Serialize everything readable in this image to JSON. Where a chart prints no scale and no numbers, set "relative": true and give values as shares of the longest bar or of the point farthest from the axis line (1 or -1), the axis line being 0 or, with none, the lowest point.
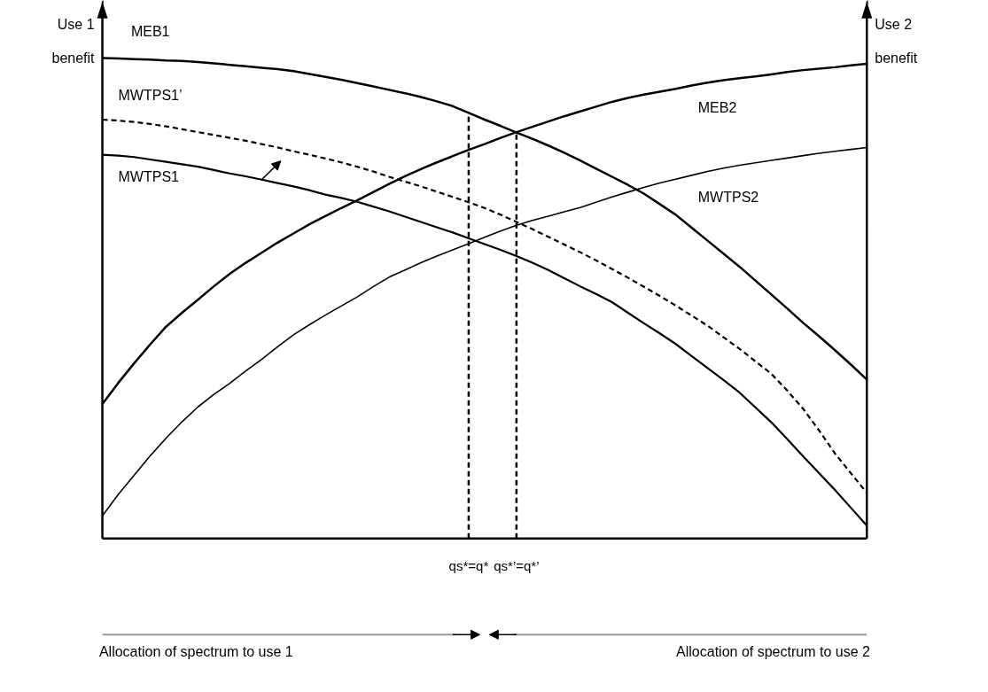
{
  "chart_data": {
    "type": "line",
    "relative": true,
    "legend": false,
    "tick_labels": "x",
    "grid": false,
    "ylabel": "Use 1 benefit",
    "y2label": "Use 2 benefit",
    "categories": [
      null,
      null,
      null,
      null,
      null,
      null,
      null,
      null,
      null,
      null,
      null,
      null,
      null,
      null,
      null,
      null,
      null,
      null,
      null,
      null,
      null,
      null,
      null,
      "qs*=q*",
      null,
      null,
      "qs*’=q*’",
      null,
      null,
      null,
      null,
      null,
      null,
      null,
      null,
      null,
      null,
      null,
      null,
      null,
      null,
      null,
      null,
      null,
      null,
      null,
      null,
      null,
      null
    ],
    "series": [
      {
        "name": "MEB1",
        "color": "#000000",
        "line_style": "solid",
        "values": [
          1.0,
          0.999,
          0.998,
          0.997,
          0.995,
          0.994,
          0.992,
          0.989,
          0.986,
          0.983,
          0.98,
          0.977,
          0.973,
          0.967,
          0.961,
          0.955,
          0.948,
          0.941,
          0.934,
          0.927,
          0.919,
          0.91,
          0.9,
          0.886,
          0.872,
          0.859,
          0.845,
          0.832,
          0.818,
          0.803,
          0.787,
          0.77,
          0.753,
          0.736,
          0.718,
          0.696,
          0.674,
          0.647,
          0.62,
          0.593,
          0.566,
          0.537,
          0.508,
          0.479,
          0.449,
          0.421,
          0.392,
          0.362,
          0.331
        ]
      },
      {
        "name": "MWTPS1’",
        "color": "#000000",
        "line_style": "dashed",
        "values": [
          0.872,
          0.87,
          0.867,
          0.863,
          0.858,
          0.852,
          0.846,
          0.84,
          0.834,
          0.828,
          0.821,
          0.814,
          0.806,
          0.799,
          0.791,
          0.783,
          0.774,
          0.764,
          0.753,
          0.743,
          0.733,
          0.722,
          0.711,
          0.7,
          0.688,
          0.674,
          0.659,
          0.644,
          0.628,
          0.612,
          0.596,
          0.579,
          0.561,
          0.543,
          0.524,
          0.505,
          0.485,
          0.464,
          0.443,
          0.419,
          0.395,
          0.369,
          0.343,
          0.308,
          0.27,
          0.225,
          0.177,
          0.136,
          0.095
        ]
      },
      {
        "name": "MWTPS1",
        "color": "#000000",
        "line_style": "solid",
        "values": [
          0.799,
          0.797,
          0.794,
          0.789,
          0.784,
          0.779,
          0.774,
          0.767,
          0.76,
          0.754,
          0.747,
          0.74,
          0.733,
          0.725,
          0.716,
          0.709,
          0.701,
          0.691,
          0.681,
          0.67,
          0.659,
          0.648,
          0.637,
          0.625,
          0.613,
          0.601,
          0.588,
          0.574,
          0.559,
          0.542,
          0.525,
          0.509,
          0.492,
          0.47,
          0.448,
          0.427,
          0.405,
          0.38,
          0.355,
          0.33,
          0.304,
          0.273,
          0.242,
          0.207,
          0.171,
          0.136,
          0.101,
          0.064,
          0.027
        ]
      },
      {
        "name": "MEB2",
        "color": "#000000",
        "line_style": "solid",
        "values": [
          0.28,
          0.324,
          0.365,
          0.404,
          0.441,
          0.47,
          0.497,
          0.525,
          0.551,
          0.574,
          0.595,
          0.616,
          0.635,
          0.654,
          0.671,
          0.688,
          0.704,
          0.721,
          0.738,
          0.754,
          0.769,
          0.783,
          0.796,
          0.809,
          0.821,
          0.834,
          0.846,
          0.857,
          0.868,
          0.879,
          0.889,
          0.899,
          0.909,
          0.917,
          0.924,
          0.93,
          0.936,
          0.943,
          0.949,
          0.954,
          0.958,
          0.962,
          0.966,
          0.971,
          0.975,
          0.978,
          0.981,
          0.985,
          0.988
        ]
      },
      {
        "name": "MWTPS2",
        "color": "#000000",
        "line_style": "solid",
        "values": [
          0.047,
          0.092,
          0.132,
          0.172,
          0.209,
          0.243,
          0.274,
          0.3,
          0.323,
          0.349,
          0.373,
          0.399,
          0.424,
          0.445,
          0.465,
          0.484,
          0.503,
          0.524,
          0.544,
          0.559,
          0.574,
          0.588,
          0.601,
          0.614,
          0.627,
          0.64,
          0.652,
          0.662,
          0.671,
          0.68,
          0.689,
          0.7,
          0.711,
          0.721,
          0.731,
          0.74,
          0.748,
          0.756,
          0.764,
          0.771,
          0.777,
          0.782,
          0.787,
          0.792,
          0.797,
          0.802,
          0.806,
          0.81,
          0.814
        ]
      }
    ],
    "ref_lines": [
      {
        "axis": "x",
        "value": "qs*=q*",
        "color": "#000000",
        "line_style": "dashed"
      },
      {
        "axis": "x",
        "value": "qs*’=q*’",
        "color": "#000000",
        "line_style": "dashed"
      }
    ],
    "annotations": [
      "Allocation of spectrum to use 1",
      "Allocation of spectrum to use 2"
    ]
  }
}
